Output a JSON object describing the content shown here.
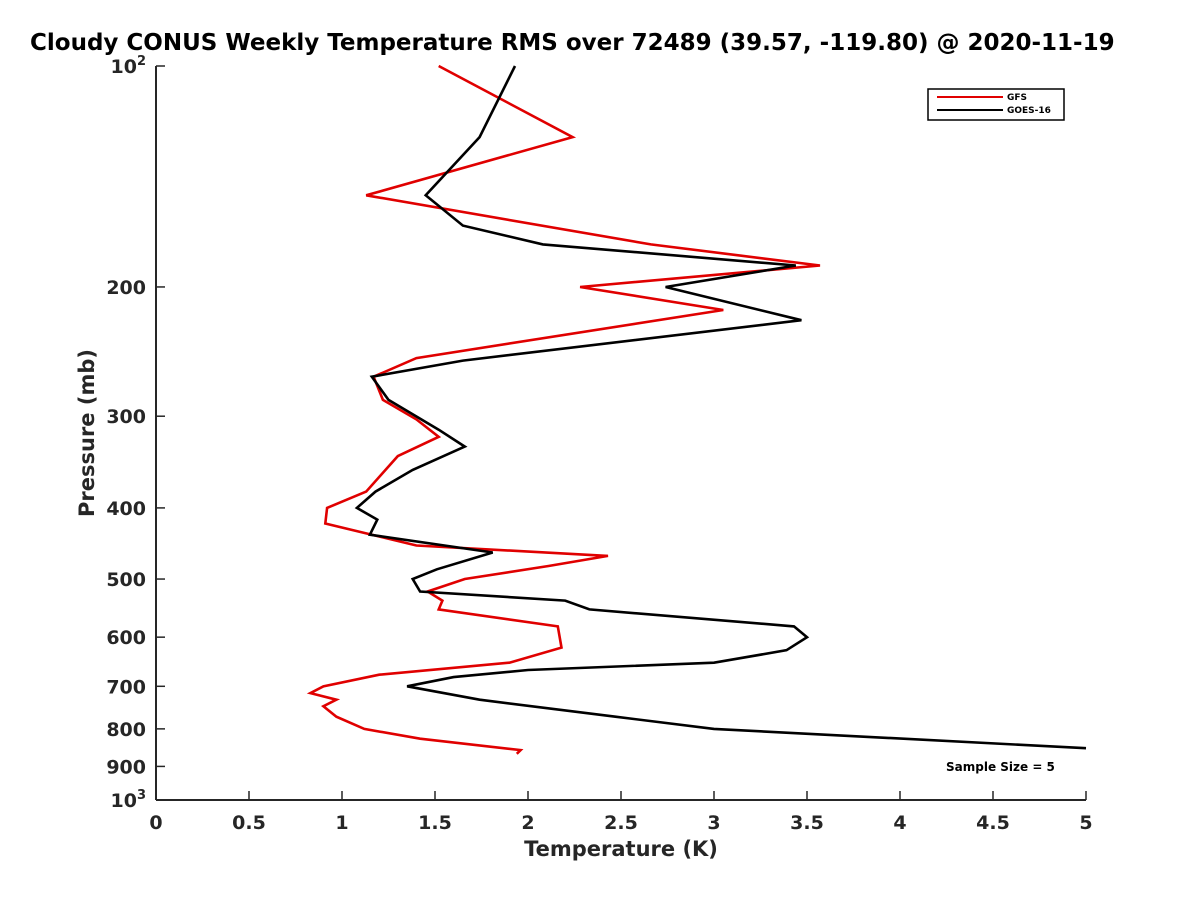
{
  "chart_data": {
    "type": "line",
    "title": "Cloudy CONUS Weekly Temperature RMS over 72489 (39.57, -119.80) @ 2020-11-19",
    "xlabel": "Temperature (K)",
    "ylabel": "Pressure (mb)",
    "xlim": [
      0,
      5
    ],
    "ylim": [
      100,
      1000
    ],
    "y_scale": "log",
    "y_reversed": true,
    "grid": false,
    "legend_position": "top-right",
    "x_ticks": [
      0,
      0.5,
      1,
      1.5,
      2,
      2.5,
      3,
      3.5,
      4,
      4.5,
      5
    ],
    "x_tick_labels": [
      "0",
      "0.5",
      "1",
      "1.5",
      "2",
      "2.5",
      "3",
      "3.5",
      "4",
      "4.5",
      "5"
    ],
    "y_ticks": [
      100,
      200,
      300,
      400,
      500,
      600,
      700,
      800,
      900,
      1000
    ],
    "y_tick_labels": [
      {
        "base": "10",
        "exp": "2"
      },
      {
        "base": "200",
        "exp": ""
      },
      {
        "base": "300",
        "exp": ""
      },
      {
        "base": "400",
        "exp": ""
      },
      {
        "base": "500",
        "exp": ""
      },
      {
        "base": "600",
        "exp": ""
      },
      {
        "base": "700",
        "exp": ""
      },
      {
        "base": "800",
        "exp": ""
      },
      {
        "base": "900",
        "exp": ""
      },
      {
        "base": "10",
        "exp": "3"
      }
    ],
    "annotation": "Sample Size = 5",
    "series": [
      {
        "name": "GFS",
        "color": "#e00000",
        "points": [
          [
            1.52,
            100
          ],
          [
            2.24,
            125
          ],
          [
            1.13,
            150
          ],
          [
            2.66,
            175
          ],
          [
            3.57,
            187
          ],
          [
            2.28,
            200
          ],
          [
            3.05,
            215
          ],
          [
            1.4,
            250
          ],
          [
            1.17,
            265
          ],
          [
            1.22,
            285
          ],
          [
            1.4,
            303
          ],
          [
            1.52,
            320
          ],
          [
            1.3,
            340
          ],
          [
            1.13,
            380
          ],
          [
            0.92,
            400
          ],
          [
            0.91,
            420
          ],
          [
            1.4,
            450
          ],
          [
            2.43,
            465
          ],
          [
            2.11,
            480
          ],
          [
            1.66,
            500
          ],
          [
            1.46,
            520
          ],
          [
            1.54,
            535
          ],
          [
            1.52,
            550
          ],
          [
            2.16,
            580
          ],
          [
            2.18,
            620
          ],
          [
            1.9,
            650
          ],
          [
            1.2,
            675
          ],
          [
            0.9,
            700
          ],
          [
            0.83,
            715
          ],
          [
            0.97,
            730
          ],
          [
            0.9,
            745
          ],
          [
            0.97,
            770
          ],
          [
            1.12,
            800
          ],
          [
            1.42,
            825
          ],
          [
            1.96,
            855
          ],
          [
            1.94,
            865
          ]
        ]
      },
      {
        "name": "GOES-16",
        "color": "#000000",
        "points": [
          [
            1.93,
            100
          ],
          [
            1.74,
            125
          ],
          [
            1.45,
            150
          ],
          [
            1.65,
            165
          ],
          [
            2.08,
            175
          ],
          [
            3.44,
            187
          ],
          [
            2.74,
            200
          ],
          [
            3.47,
            222
          ],
          [
            1.65,
            252
          ],
          [
            1.16,
            265
          ],
          [
            1.25,
            285
          ],
          [
            1.52,
            313
          ],
          [
            1.66,
            330
          ],
          [
            1.38,
            355
          ],
          [
            1.18,
            380
          ],
          [
            1.08,
            400
          ],
          [
            1.19,
            415
          ],
          [
            1.15,
            435
          ],
          [
            1.81,
            460
          ],
          [
            1.51,
            485
          ],
          [
            1.38,
            500
          ],
          [
            1.42,
            520
          ],
          [
            2.2,
            535
          ],
          [
            2.33,
            550
          ],
          [
            3.43,
            580
          ],
          [
            3.5,
            600
          ],
          [
            3.39,
            625
          ],
          [
            3.0,
            650
          ],
          [
            2.0,
            665
          ],
          [
            1.6,
            680
          ],
          [
            1.35,
            700
          ],
          [
            1.74,
            730
          ],
          [
            2.47,
            770
          ],
          [
            3.0,
            800
          ],
          [
            5.0,
            850
          ]
        ]
      }
    ]
  }
}
